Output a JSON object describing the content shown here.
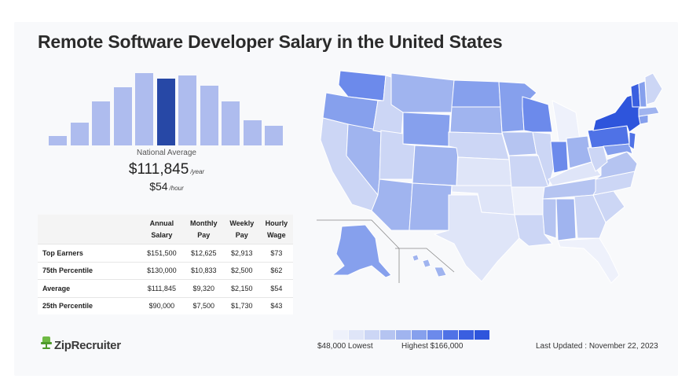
{
  "title": "Remote Software Developer Salary in the United States",
  "histogram": {
    "values": [
      12,
      29,
      56,
      74,
      92,
      85,
      89,
      76,
      56,
      32,
      25
    ],
    "highlight_index": 5,
    "color": "#aebcee",
    "highlight_color": "#2748a6"
  },
  "national": {
    "label": "National Average",
    "year_value": "$111,845",
    "year_unit": "/year",
    "hour_value": "$54",
    "hour_unit": "/hour"
  },
  "table": {
    "headers": {
      "annual": [
        "Annual",
        "Salary"
      ],
      "monthly": [
        "Monthly",
        "Pay"
      ],
      "weekly": [
        "Weekly",
        "Pay"
      ],
      "hourly": [
        "Hourly",
        "Wage"
      ]
    },
    "rows": [
      {
        "label": "Top Earners",
        "annual": "$151,500",
        "monthly": "$12,625",
        "weekly": "$2,913",
        "hourly": "$73"
      },
      {
        "label": "75th Percentile",
        "annual": "$130,000",
        "monthly": "$10,833",
        "weekly": "$2,500",
        "hourly": "$62"
      },
      {
        "label": "Average",
        "annual": "$111,845",
        "monthly": "$9,320",
        "weekly": "$2,150",
        "hourly": "$54"
      },
      {
        "label": "25th Percentile",
        "annual": "$90,000",
        "monthly": "$7,500",
        "weekly": "$1,730",
        "hourly": "$43"
      }
    ]
  },
  "brand": "ZipRecruiter",
  "legend": {
    "low": "$48,000 Lowest",
    "high": "Highest $166,000",
    "colors": [
      "#eef1fb",
      "#dfe5f8",
      "#ccd6f5",
      "#b5c4f1",
      "#a0b4ef",
      "#86a0ed",
      "#6c8aeb",
      "#4f72e6",
      "#3a5fe0",
      "#2e55dc"
    ]
  },
  "updated": "Last Updated : November 22, 2023"
}
